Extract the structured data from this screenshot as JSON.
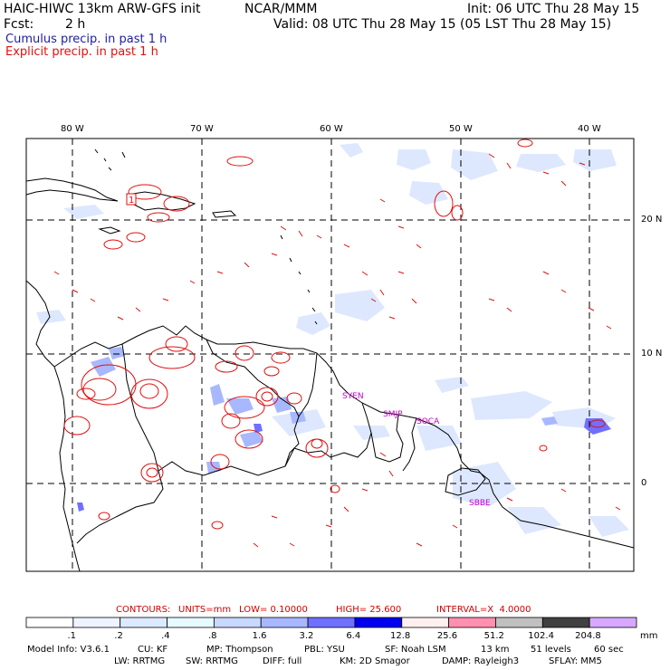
{
  "header": {
    "model": "HAIC-HIWC 13km ARW-GFS init",
    "org": "NCAR/MMM",
    "init": "Init: 06 UTC Thu 28 May 15",
    "fcst_label": "Fcst:",
    "fcst_value": "2 h",
    "valid": "Valid: 08 UTC Thu 28 May 15 (05 LST Thu 28 May 15)",
    "cumulus": "Cumulus precip. in past 1 h",
    "explicit": "Explicit precip. in past 1 h",
    "cumulus_color": "#2020a0",
    "explicit_color": "#e01010"
  },
  "map": {
    "lon_labels": [
      "80 W",
      "70 W",
      "60 W",
      "50 W",
      "40 W"
    ],
    "lat_labels": [
      "20 N",
      "10 N",
      "0"
    ],
    "stations": [
      "SYEN",
      "SMJP",
      "SOCA",
      "SBBE"
    ],
    "station_color": "#cc00cc",
    "marker": "1"
  },
  "contours": {
    "label": "CONTOURS:",
    "units": "UNITS=mm",
    "low": "LOW= 0.10000",
    "high": "HIGH= 25.600",
    "interval": "INTERVAL=X  4.0000"
  },
  "colorbar": {
    "unit": "mm",
    "labels": [
      ".1",
      ".2",
      ".4",
      ".8",
      "1.6",
      "3.2",
      "6.4",
      "12.8",
      "25.6",
      "51.2",
      "102.4",
      "204.8"
    ],
    "colors": [
      "#ffffff",
      "#eef3ff",
      "#dceaff",
      "#e6faff",
      "#c8d8ff",
      "#a8b8ff",
      "#7070ff",
      "#0000f0",
      "#fff0f0",
      "#ff90b0",
      "#c0c0c0",
      "#404040",
      "#d8a8ff"
    ]
  },
  "model_info": {
    "line1": [
      "Model Info: V3.6.1",
      "CU: KF",
      "MP: Thompson",
      "PBL: YSU",
      "SF: Noah LSM",
      "13 km",
      "51 levels",
      "60 sec"
    ],
    "line2": [
      "LW: RRTMG",
      "SW: RRTMG",
      "DIFF: full",
      "KM: 2D Smagor",
      "DAMP: Rayleigh3",
      "SFLAY: MM5"
    ]
  }
}
